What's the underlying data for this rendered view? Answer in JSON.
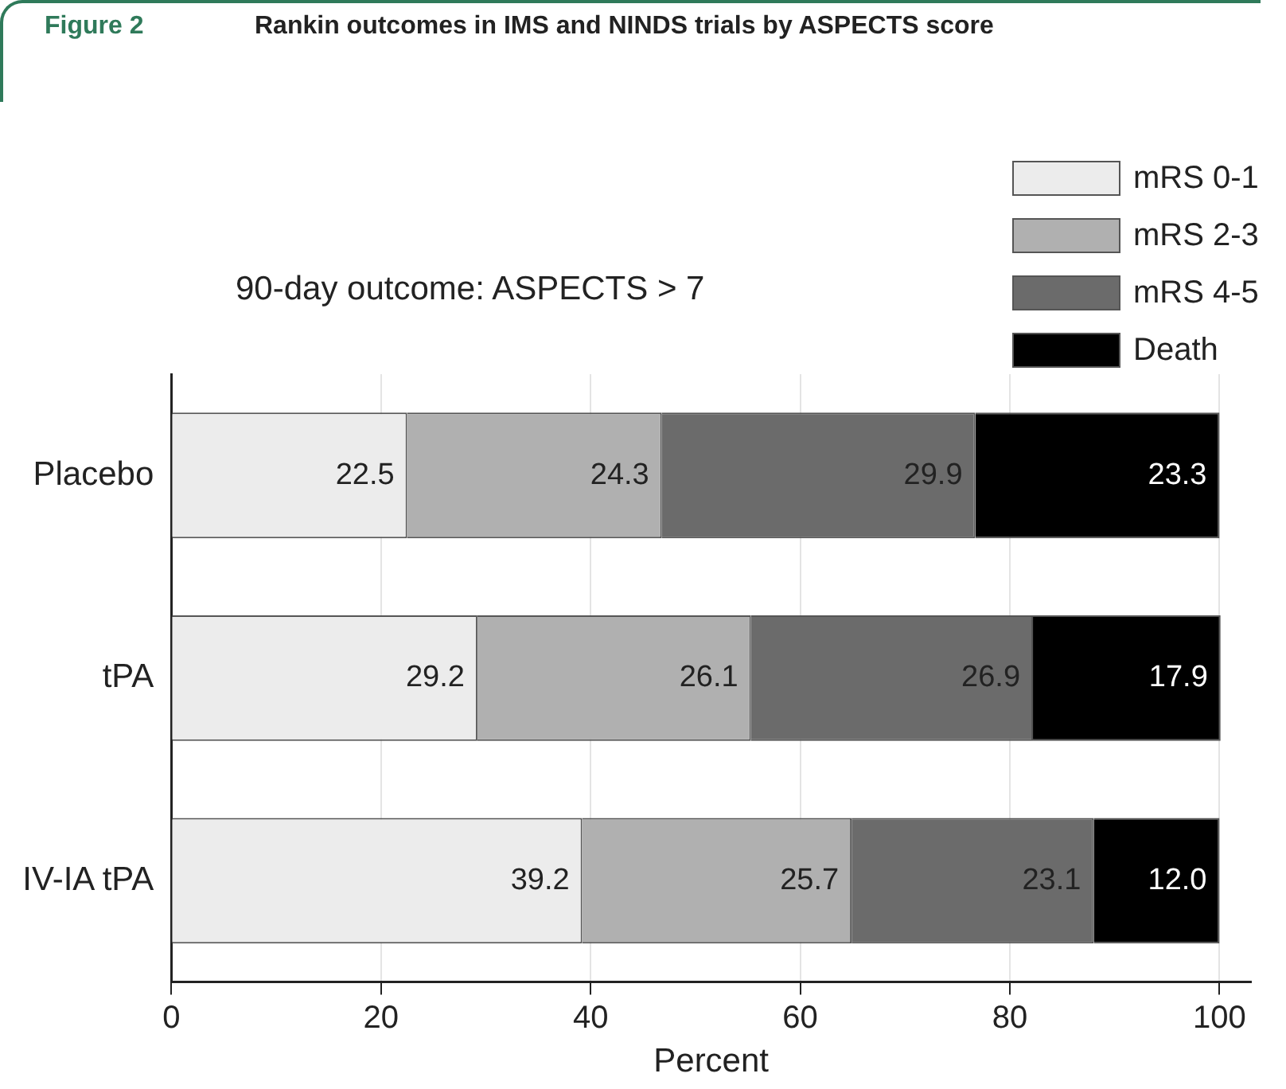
{
  "chart_data": {
    "type": "bar",
    "orientation": "horizontal",
    "stacked": true,
    "title": "Rankin outcomes in IMS and NINDS trials by ASPECTS score",
    "subtitle": "90-day outcome: ASPECTS > 7",
    "annotations": [
      "Figure 2"
    ],
    "xlabel": "Percent",
    "categories": [
      "Placebo",
      "tPA",
      "IV-IA tPA"
    ],
    "series": [
      {
        "name": "mRS 0-1",
        "color": "#ececec",
        "values": [
          22.5,
          29.2,
          39.2
        ],
        "value_labels": [
          "22.5",
          "29.2",
          "39.2"
        ]
      },
      {
        "name": "mRS 2-3",
        "color": "#b0b0b0",
        "values": [
          24.3,
          26.1,
          25.7
        ],
        "value_labels": [
          "24.3",
          "26.1",
          "25.7"
        ]
      },
      {
        "name": "mRS 4-5",
        "color": "#6b6b6b",
        "values": [
          29.9,
          26.9,
          23.1
        ],
        "value_labels": [
          "29.9",
          "26.9",
          "23.1"
        ]
      },
      {
        "name": "Death",
        "color": "#000000",
        "values": [
          23.3,
          17.9,
          12.0
        ],
        "value_labels": [
          "23.3",
          "17.9",
          "12.0"
        ]
      }
    ],
    "xlim": [
      0,
      103
    ],
    "xticks": [
      0,
      20,
      40,
      60,
      80,
      100
    ],
    "grid": "x",
    "legend": "top right"
  }
}
